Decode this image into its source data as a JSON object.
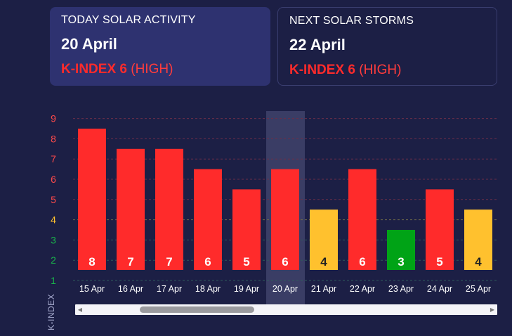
{
  "today": {
    "title": "TODAY SOLAR ACTIVITY",
    "date": "20 April",
    "kindex_label": "K-INDEX 6",
    "level": "(HIGH)"
  },
  "next": {
    "title": "NEXT SOLAR STORMS",
    "date": "22 April",
    "kindex_label": "K-INDEX 6",
    "level": "(HIGH)"
  },
  "colors": {
    "high": "#ff2b2b",
    "moderate": "#ffc12e",
    "low": "#00a316",
    "tick_high": "#ff4a4a",
    "tick_moderate": "#ffc12e",
    "tick_low": "#19b34a"
  },
  "chart_data": {
    "type": "bar",
    "ylabel": "K-INDEX",
    "ylim": [
      1,
      9
    ],
    "yticks": [
      1,
      2,
      3,
      4,
      5,
      6,
      7,
      8,
      9
    ],
    "categories": [
      "15 Apr",
      "16 Apr",
      "17 Apr",
      "18 Apr",
      "19 Apr",
      "20 Apr",
      "21 Apr",
      "22 Apr",
      "23 Apr",
      "24 Apr",
      "25 Apr"
    ],
    "values": [
      8,
      7,
      7,
      6,
      5,
      6,
      4,
      6,
      3,
      5,
      4
    ],
    "highlighted_category": "20 Apr",
    "grid": "dashed horizontal",
    "data_labels": true
  },
  "scrollbar": {
    "left_arrow": "◀",
    "right_arrow": "▶"
  }
}
